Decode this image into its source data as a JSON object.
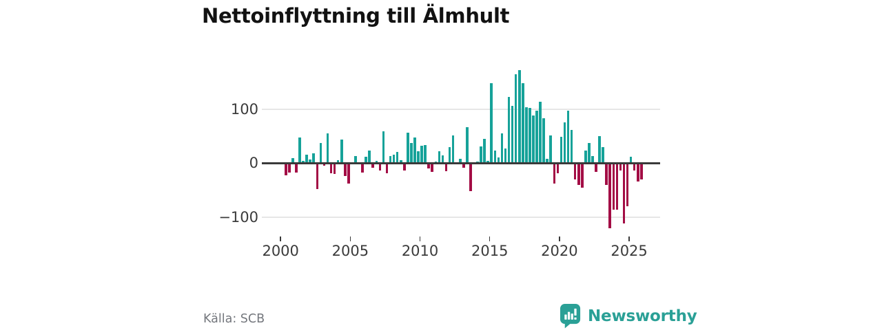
{
  "title": "Nettoinflyttning till Älmhult",
  "source": {
    "text": "Källa: SCB"
  },
  "brand": {
    "name": "Newsworthy",
    "color": "#2aa096"
  },
  "colors": {
    "positive": "#16a299",
    "negative": "#a30d45",
    "zero_axis": "#3a3a3a",
    "gridline": "#e6e6e6",
    "tick_text": "#3b3b3b",
    "title_text": "#121212",
    "source_text": "#74777d"
  },
  "chart_data": {
    "type": "bar",
    "title": "Nettoinflyttning till Älmhult",
    "frequency": "quarterly",
    "grid": "horizontal",
    "legend": "none",
    "xlim": [
      1999.15,
      2027.2
    ],
    "ylim": [
      -130,
      185
    ],
    "x_ticks": [
      {
        "v": 2000,
        "label": "2000"
      },
      {
        "v": 2005,
        "label": "2005"
      },
      {
        "v": 2010,
        "label": "2010"
      },
      {
        "v": 2015,
        "label": "2015"
      },
      {
        "v": 2020,
        "label": "2020"
      },
      {
        "v": 2025,
        "label": "2025"
      }
    ],
    "y_ticks": [
      {
        "v": 100,
        "label": "100"
      },
      {
        "v": 0,
        "label": "0"
      },
      {
        "v": -100,
        "label": "−100"
      }
    ],
    "series_name": "Nettoinflyttning",
    "points": [
      [
        "2000Q1",
        0
      ],
      [
        "2000Q2",
        -22
      ],
      [
        "2000Q3",
        -17
      ],
      [
        "2000Q4",
        9
      ],
      [
        "2001Q1",
        -17
      ],
      [
        "2001Q2",
        48
      ],
      [
        "2001Q3",
        4
      ],
      [
        "2001Q4",
        16
      ],
      [
        "2002Q1",
        7
      ],
      [
        "2002Q2",
        18
      ],
      [
        "2002Q3",
        -48
      ],
      [
        "2002Q4",
        38
      ],
      [
        "2003Q1",
        -4
      ],
      [
        "2003Q2",
        55
      ],
      [
        "2003Q3",
        -18
      ],
      [
        "2003Q4",
        -20
      ],
      [
        "2004Q1",
        6
      ],
      [
        "2004Q2",
        44
      ],
      [
        "2004Q3",
        -23
      ],
      [
        "2004Q4",
        -37
      ],
      [
        "2005Q1",
        0
      ],
      [
        "2005Q2",
        14
      ],
      [
        "2005Q3",
        0
      ],
      [
        "2005Q4",
        -17
      ],
      [
        "2006Q1",
        12
      ],
      [
        "2006Q2",
        23
      ],
      [
        "2006Q3",
        -8
      ],
      [
        "2006Q4",
        4
      ],
      [
        "2007Q1",
        -14
      ],
      [
        "2007Q2",
        59
      ],
      [
        "2007Q3",
        -18
      ],
      [
        "2007Q4",
        13
      ],
      [
        "2008Q1",
        16
      ],
      [
        "2008Q2",
        21
      ],
      [
        "2008Q3",
        6
      ],
      [
        "2008Q4",
        -13
      ],
      [
        "2009Q1",
        57
      ],
      [
        "2009Q2",
        37
      ],
      [
        "2009Q3",
        48
      ],
      [
        "2009Q4",
        22
      ],
      [
        "2010Q1",
        33
      ],
      [
        "2010Q2",
        34
      ],
      [
        "2010Q3",
        -9
      ],
      [
        "2010Q4",
        -16
      ],
      [
        "2011Q1",
        3
      ],
      [
        "2011Q2",
        22
      ],
      [
        "2011Q3",
        15
      ],
      [
        "2011Q4",
        -15
      ],
      [
        "2012Q1",
        30
      ],
      [
        "2012Q2",
        51
      ],
      [
        "2012Q3",
        0
      ],
      [
        "2012Q4",
        8
      ],
      [
        "2013Q1",
        -8
      ],
      [
        "2013Q2",
        67
      ],
      [
        "2013Q3",
        -51
      ],
      [
        "2013Q4",
        0
      ],
      [
        "2014Q1",
        3
      ],
      [
        "2014Q2",
        31
      ],
      [
        "2014Q3",
        45
      ],
      [
        "2014Q4",
        5
      ],
      [
        "2015Q1",
        148
      ],
      [
        "2015Q2",
        23
      ],
      [
        "2015Q3",
        11
      ],
      [
        "2015Q4",
        56
      ],
      [
        "2016Q1",
        28
      ],
      [
        "2016Q2",
        123
      ],
      [
        "2016Q3",
        106
      ],
      [
        "2016Q4",
        165
      ],
      [
        "2017Q1",
        172
      ],
      [
        "2017Q2",
        149
      ],
      [
        "2017Q3",
        104
      ],
      [
        "2017Q4",
        103
      ],
      [
        "2018Q1",
        88
      ],
      [
        "2018Q2",
        97
      ],
      [
        "2018Q3",
        114
      ],
      [
        "2018Q4",
        84
      ],
      [
        "2019Q1",
        8
      ],
      [
        "2019Q2",
        51
      ],
      [
        "2019Q3",
        -37
      ],
      [
        "2019Q4",
        -18
      ],
      [
        "2020Q1",
        49
      ],
      [
        "2020Q2",
        76
      ],
      [
        "2020Q3",
        98
      ],
      [
        "2020Q4",
        62
      ],
      [
        "2021Q1",
        -30
      ],
      [
        "2021Q2",
        -40
      ],
      [
        "2021Q3",
        -45
      ],
      [
        "2021Q4",
        23
      ],
      [
        "2022Q1",
        37
      ],
      [
        "2022Q2",
        14
      ],
      [
        "2022Q3",
        -16
      ],
      [
        "2022Q4",
        50
      ],
      [
        "2023Q1",
        30
      ],
      [
        "2023Q2",
        -40
      ],
      [
        "2023Q3",
        -120
      ],
      [
        "2023Q4",
        -86
      ],
      [
        "2024Q1",
        -86
      ],
      [
        "2024Q2",
        -13
      ],
      [
        "2024Q3",
        -112
      ],
      [
        "2024Q4",
        -80
      ],
      [
        "2025Q1",
        12
      ],
      [
        "2025Q2",
        -14
      ],
      [
        "2025Q3",
        -34
      ],
      [
        "2025Q4",
        -30
      ]
    ]
  }
}
